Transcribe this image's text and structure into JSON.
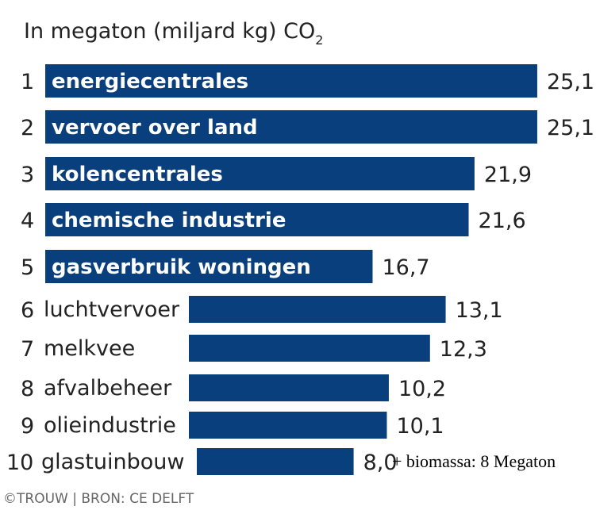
{
  "chart_data": {
    "type": "bar",
    "orientation": "horizontal",
    "title": "In megaton (miljard kg) CO",
    "title_subscript": "2",
    "ranks": [
      "1",
      "2",
      "3",
      "4",
      "5",
      "6",
      "7",
      "8",
      "9",
      "10"
    ],
    "categories": [
      "energiecentrales",
      "vervoer over land",
      "kolencentrales",
      "chemische industrie",
      "gasverbruik woningen",
      "luchtvervoer",
      "melkvee",
      "afvalbeheer",
      "olieindustrie",
      "glastuinbouw"
    ],
    "values": [
      25.1,
      25.1,
      21.9,
      21.6,
      16.7,
      13.1,
      12.3,
      10.2,
      10.1,
      8.0
    ],
    "value_labels": [
      "25,1",
      "25,1",
      "21,9",
      "21,6",
      "16,7",
      "13,1",
      "12,3",
      "10,2",
      "10,1",
      "8,0"
    ],
    "label_inside_bar_count": 5,
    "annotation": "+ biomassa: 8 Megaton",
    "annotation_category": "glastuinbouw",
    "source": "©TROUW | BRON: CE DELFT",
    "bar_color": "#0a3f7e",
    "grid": false,
    "legend": "none"
  }
}
